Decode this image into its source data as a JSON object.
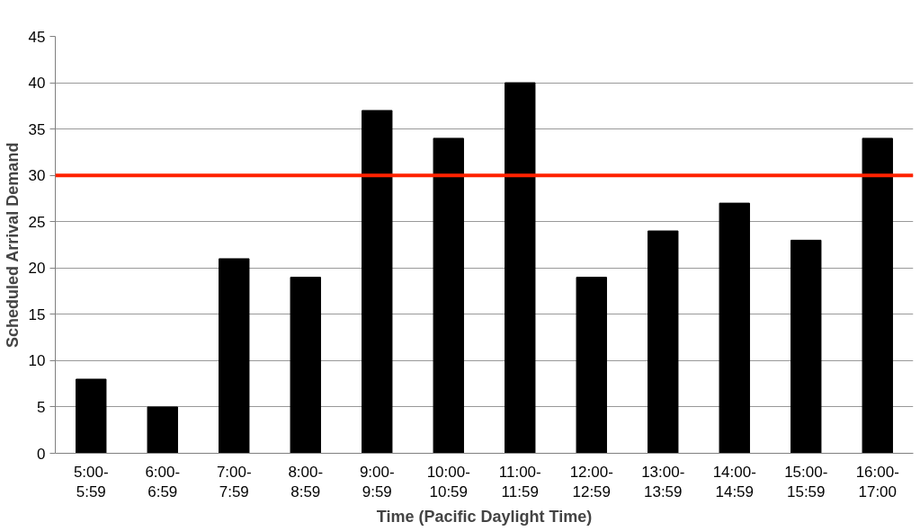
{
  "chart_data": {
    "type": "bar",
    "xlabel": "Time (Pacific Daylight Time)",
    "ylabel": "Scheduled Arrival Demand",
    "categories": [
      "5:00-\n5:59",
      "6:00-\n6:59",
      "7:00-\n7:59",
      "8:00-\n8:59",
      "9:00-\n9:59",
      "10:00-\n10:59",
      "11:00-\n11:59",
      "12:00-\n12:59",
      "13:00-\n13:59",
      "14:00-\n14:59",
      "15:00-\n15:59",
      "16:00-\n17:00"
    ],
    "values": [
      8,
      5,
      21,
      19,
      37,
      34,
      40,
      19,
      24,
      27,
      23,
      34
    ],
    "color": "#000000",
    "ylim": [
      0,
      45
    ],
    "yticks": [
      0,
      5,
      10,
      15,
      20,
      25,
      30,
      35,
      40,
      45
    ],
    "grid": "y",
    "ref_lines": [
      {
        "axis": "y",
        "value": 30,
        "label": null,
        "color": "#ff2200",
        "line_style": "solid"
      }
    ]
  }
}
